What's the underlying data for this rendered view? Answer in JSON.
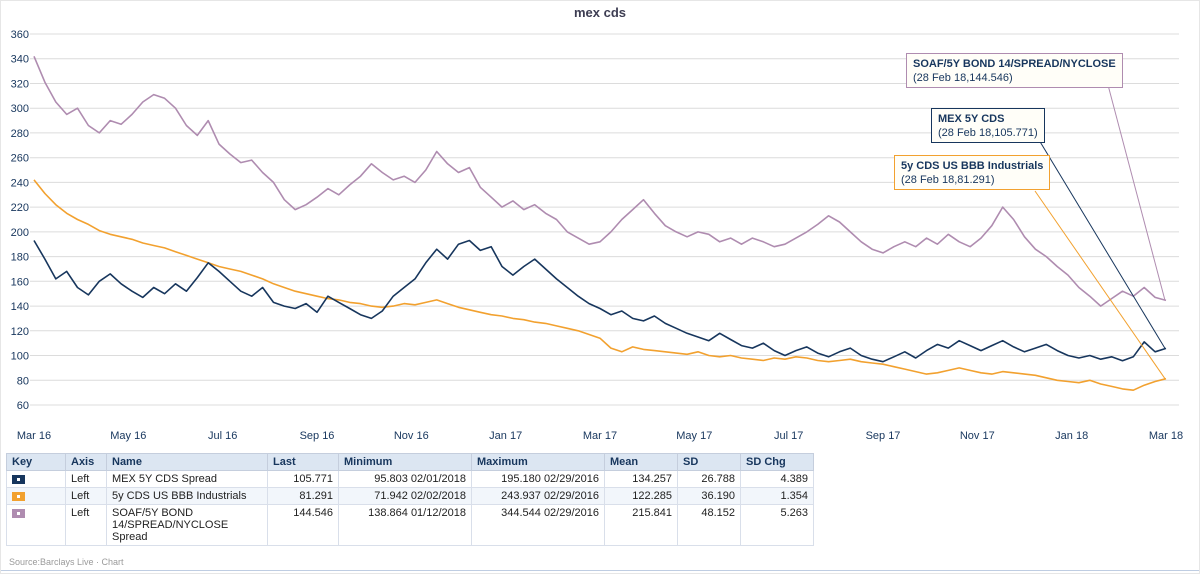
{
  "title": "mex cds",
  "footer": {
    "source": "Source:Barclays Live · Chart"
  },
  "chart_data": {
    "type": "line",
    "title": "mex cds",
    "ylim": [
      60,
      360
    ],
    "yticks": [
      60,
      80,
      100,
      120,
      140,
      160,
      180,
      200,
      220,
      240,
      260,
      280,
      300,
      320,
      340,
      360
    ],
    "xticklabels": [
      "Mar 16",
      "May 16",
      "Jul 16",
      "Sep 16",
      "Nov 16",
      "Jan 17",
      "Mar 17",
      "May 17",
      "Jul 17",
      "Sep 17",
      "Nov 17",
      "Jan 18",
      "Mar 18"
    ],
    "grid": "horizontal",
    "legend_position": "table-below",
    "series": [
      {
        "name": "MEX 5Y CDS Spread",
        "color": "#17365d",
        "values": [
          193,
          178,
          162,
          168,
          155,
          149,
          160,
          166,
          158,
          152,
          147,
          155,
          150,
          158,
          152,
          163,
          175,
          168,
          160,
          152,
          148,
          155,
          143,
          140,
          138,
          142,
          135,
          148,
          143,
          138,
          133,
          130,
          136,
          148,
          155,
          162,
          175,
          186,
          178,
          190,
          193,
          185,
          188,
          172,
          165,
          172,
          178,
          170,
          162,
          155,
          148,
          142,
          138,
          133,
          136,
          130,
          128,
          132,
          126,
          122,
          118,
          115,
          112,
          118,
          113,
          108,
          106,
          110,
          104,
          100,
          104,
          107,
          102,
          99,
          103,
          106,
          100,
          97,
          95,
          99,
          103,
          98,
          104,
          109,
          106,
          112,
          108,
          104,
          108,
          112,
          107,
          103,
          106,
          109,
          104,
          100,
          98,
          100,
          97,
          99,
          95.8,
          99,
          111,
          103,
          105.771
        ]
      },
      {
        "name": "5y CDS US BBB Industrials",
        "color": "#f2a12f",
        "values": [
          242,
          231,
          222,
          215,
          210,
          206,
          201,
          198,
          196,
          194,
          191,
          189,
          187,
          184,
          181,
          178,
          175,
          172,
          170,
          168,
          165,
          162,
          158,
          155,
          152,
          150,
          148,
          146,
          145,
          143,
          142,
          140,
          139,
          140,
          142,
          141,
          143,
          145,
          142,
          139,
          137,
          135,
          133,
          132,
          130,
          129,
          127,
          126,
          124,
          122,
          120,
          117,
          114,
          106,
          103,
          107,
          105,
          104,
          103,
          102,
          101,
          103,
          100,
          99,
          100,
          98,
          97,
          96,
          98,
          97,
          99,
          98,
          96,
          95,
          96,
          97,
          95,
          94,
          93,
          91,
          89,
          87,
          85,
          86,
          88,
          90,
          88,
          86,
          85,
          87,
          86,
          85,
          84,
          82,
          80,
          79,
          78,
          80,
          77,
          75,
          73,
          72,
          76,
          79,
          81.291
        ]
      },
      {
        "name": "SOAF/5Y BOND 14/SPREAD/NYCLOSE Spread",
        "color": "#af8cb0",
        "values": [
          342,
          321,
          305,
          295,
          300,
          286,
          280,
          290,
          287,
          295,
          305,
          311,
          308,
          300,
          286,
          278,
          290,
          271,
          263,
          256,
          258,
          248,
          240,
          226,
          218,
          222,
          228,
          235,
          230,
          238,
          245,
          255,
          248,
          242,
          245,
          240,
          250,
          265,
          255,
          248,
          252,
          236,
          228,
          220,
          225,
          218,
          222,
          215,
          210,
          200,
          195,
          190,
          192,
          200,
          210,
          218,
          226,
          215,
          205,
          200,
          196,
          200,
          198,
          192,
          195,
          190,
          195,
          192,
          188,
          190,
          195,
          200,
          206,
          213,
          208,
          200,
          192,
          186,
          183,
          188,
          192,
          188,
          195,
          190,
          198,
          192,
          188,
          195,
          205,
          220,
          210,
          196,
          186,
          180,
          172,
          165,
          155,
          148,
          140,
          146,
          152,
          148,
          155,
          147,
          144.546
        ]
      }
    ]
  },
  "callouts": [
    {
      "label": "SOAF/5Y BOND 14/SPREAD/NYCLOSE",
      "value": "(28 Feb 18,144.546)",
      "color": "#af8cb0"
    },
    {
      "label": "MEX 5Y CDS",
      "value": "(28 Feb 18,105.771)",
      "color": "#17365d"
    },
    {
      "label": "5y CDS US BBB Industrials",
      "value": "(28 Feb 18,81.291)",
      "color": "#f2a12f"
    }
  ],
  "table": {
    "headers": [
      "Key",
      "Axis",
      "Name",
      "Last",
      "Minimum",
      "Maximum",
      "Mean",
      "SD",
      "SD Chg"
    ],
    "rows": [
      {
        "axis": "Left",
        "name": "MEX 5Y CDS Spread",
        "last": "105.771",
        "minimum": "95.803 02/01/2018",
        "maximum": "195.180 02/29/2016",
        "mean": "134.257",
        "sd": "26.788",
        "sd_chg": "4.389"
      },
      {
        "axis": "Left",
        "name": "5y CDS US BBB Industrials",
        "last": "81.291",
        "minimum": "71.942 02/02/2018",
        "maximum": "243.937 02/29/2016",
        "mean": "122.285",
        "sd": "36.190",
        "sd_chg": "1.354"
      },
      {
        "axis": "Left",
        "name": "SOAF/5Y BOND 14/SPREAD/NYCLOSE Spread",
        "last": "144.546",
        "minimum": "138.864 01/12/2018",
        "maximum": "344.544 02/29/2016",
        "mean": "215.841",
        "sd": "48.152",
        "sd_chg": "5.263"
      }
    ]
  }
}
